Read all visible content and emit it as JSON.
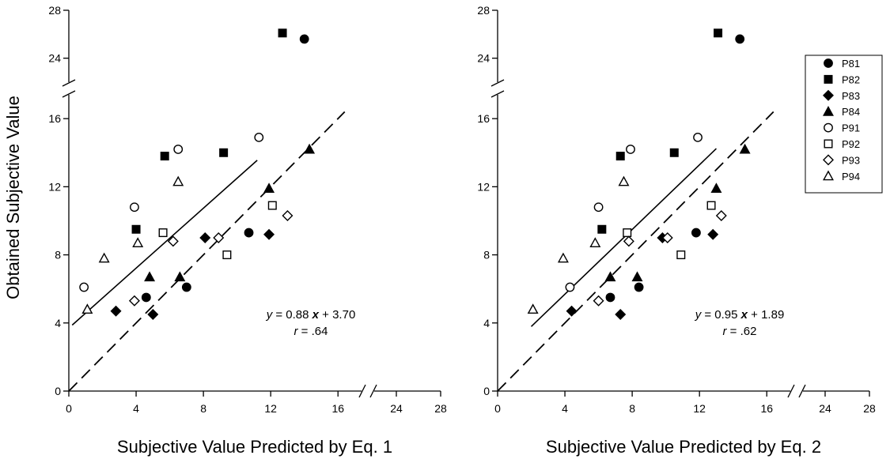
{
  "y_axis_label": "Obtained Subjective Value",
  "legend": {
    "entries": [
      {
        "name": "P81",
        "marker": "filled-circle"
      },
      {
        "name": "P82",
        "marker": "filled-square"
      },
      {
        "name": "P83",
        "marker": "filled-diamond"
      },
      {
        "name": "P84",
        "marker": "filled-triangle"
      },
      {
        "name": "P91",
        "marker": "open-circle"
      },
      {
        "name": "P92",
        "marker": "open-square"
      },
      {
        "name": "P93",
        "marker": "open-diamond"
      },
      {
        "name": "P94",
        "marker": "open-triangle"
      }
    ]
  },
  "chart_data": [
    {
      "type": "scatter",
      "xlabel": "Subjective Value Predicted by Eq. 1",
      "ylabel": "Obtained Subjective Value",
      "xlim": [
        0,
        28
      ],
      "ylim": [
        0,
        28
      ],
      "x_ticks": [
        "0",
        "4",
        "8",
        "12",
        "16",
        "24",
        "28"
      ],
      "y_ticks": [
        "0",
        "4",
        "8",
        "12",
        "16",
        "24",
        "28"
      ],
      "x_axis_break": [
        18,
        22
      ],
      "y_axis_break": [
        18,
        22
      ],
      "grid": false,
      "legend_position": "none",
      "fit_line": {
        "slope": 0.88,
        "intercept": 3.7,
        "x_range": [
          0.2,
          11.2
        ],
        "style": "solid"
      },
      "identity_line": {
        "x_range": [
          0,
          16.4
        ],
        "style": "dashed"
      },
      "equation": {
        "y_part": "y",
        "eq1": " = 0.88 ",
        "x_part": "x",
        "eq2": " + 3.70",
        "r_part": "r",
        "r_eq": " = .64"
      },
      "series": [
        {
          "name": "P81",
          "marker": "filled-circle",
          "points": [
            [
              14.0,
              25.6
            ],
            [
              10.7,
              9.3
            ],
            [
              7.0,
              6.1
            ],
            [
              4.6,
              5.5
            ]
          ]
        },
        {
          "name": "P82",
          "marker": "filled-square",
          "points": [
            [
              12.7,
              26.1
            ],
            [
              9.2,
              14.0
            ],
            [
              5.7,
              13.8
            ],
            [
              4.0,
              9.5
            ]
          ]
        },
        {
          "name": "P83",
          "marker": "filled-diamond",
          "points": [
            [
              2.8,
              4.7
            ],
            [
              5.0,
              4.5
            ],
            [
              8.1,
              9.0
            ],
            [
              11.9,
              9.2
            ]
          ]
        },
        {
          "name": "P84",
          "marker": "filled-triangle",
          "points": [
            [
              14.3,
              14.2
            ],
            [
              11.9,
              11.9
            ],
            [
              6.6,
              6.7
            ],
            [
              4.8,
              6.7
            ]
          ]
        },
        {
          "name": "P91",
          "marker": "open-circle",
          "points": [
            [
              0.9,
              6.1
            ],
            [
              3.9,
              10.8
            ],
            [
              6.5,
              14.2
            ],
            [
              11.3,
              14.9
            ]
          ]
        },
        {
          "name": "P92",
          "marker": "open-square",
          "points": [
            [
              5.6,
              9.3
            ],
            [
              9.4,
              8.0
            ],
            [
              12.1,
              10.9
            ]
          ]
        },
        {
          "name": "P93",
          "marker": "open-diamond",
          "points": [
            [
              3.9,
              5.3
            ],
            [
              6.2,
              8.8
            ],
            [
              8.9,
              9.0
            ],
            [
              13.0,
              10.3
            ]
          ]
        },
        {
          "name": "P94",
          "marker": "open-triangle",
          "points": [
            [
              1.1,
              4.8
            ],
            [
              2.1,
              7.8
            ],
            [
              4.1,
              8.7
            ],
            [
              6.5,
              12.3
            ]
          ]
        }
      ]
    },
    {
      "type": "scatter",
      "xlabel": "Subjective Value Predicted by Eq. 2",
      "ylabel": "",
      "xlim": [
        0,
        28
      ],
      "ylim": [
        0,
        28
      ],
      "x_ticks": [
        "0",
        "4",
        "8",
        "12",
        "16",
        "24",
        "28"
      ],
      "y_ticks": [
        "0",
        "4",
        "8",
        "12",
        "16",
        "24",
        "28"
      ],
      "x_axis_break": [
        18,
        22
      ],
      "y_axis_break": [
        18,
        22
      ],
      "grid": false,
      "legend_position": "top-right",
      "fit_line": {
        "slope": 0.95,
        "intercept": 1.89,
        "x_range": [
          2.0,
          13.0
        ],
        "style": "solid"
      },
      "identity_line": {
        "x_range": [
          0,
          16.4
        ],
        "style": "dashed"
      },
      "equation": {
        "y_part": "y",
        "eq1": " = 0.95 ",
        "x_part": "x",
        "eq2": " + 1.89",
        "r_part": "r",
        "r_eq": " = .62"
      },
      "series": [
        {
          "name": "P81",
          "marker": "filled-circle",
          "points": [
            [
              14.4,
              25.6
            ],
            [
              11.8,
              9.3
            ],
            [
              8.4,
              6.1
            ],
            [
              6.7,
              5.5
            ]
          ]
        },
        {
          "name": "P82",
          "marker": "filled-square",
          "points": [
            [
              13.1,
              26.1
            ],
            [
              10.5,
              14.0
            ],
            [
              7.3,
              13.8
            ],
            [
              6.2,
              9.5
            ]
          ]
        },
        {
          "name": "P83",
          "marker": "filled-diamond",
          "points": [
            [
              4.4,
              4.7
            ],
            [
              7.3,
              4.5
            ],
            [
              9.8,
              9.0
            ],
            [
              12.8,
              9.2
            ]
          ]
        },
        {
          "name": "P84",
          "marker": "filled-triangle",
          "points": [
            [
              14.7,
              14.2
            ],
            [
              13.0,
              11.9
            ],
            [
              6.7,
              6.7
            ],
            [
              8.3,
              6.7
            ]
          ]
        },
        {
          "name": "P91",
          "marker": "open-circle",
          "points": [
            [
              4.3,
              6.1
            ],
            [
              6.0,
              10.8
            ],
            [
              7.9,
              14.2
            ],
            [
              11.9,
              14.9
            ]
          ]
        },
        {
          "name": "P92",
          "marker": "open-square",
          "points": [
            [
              7.7,
              9.3
            ],
            [
              10.9,
              8.0
            ],
            [
              12.7,
              10.9
            ]
          ]
        },
        {
          "name": "P93",
          "marker": "open-diamond",
          "points": [
            [
              6.0,
              5.3
            ],
            [
              7.8,
              8.8
            ],
            [
              10.1,
              9.0
            ],
            [
              13.3,
              10.3
            ]
          ]
        },
        {
          "name": "P94",
          "marker": "open-triangle",
          "points": [
            [
              2.1,
              4.8
            ],
            [
              3.9,
              7.8
            ],
            [
              5.8,
              8.7
            ],
            [
              7.5,
              12.3
            ]
          ]
        }
      ]
    }
  ]
}
